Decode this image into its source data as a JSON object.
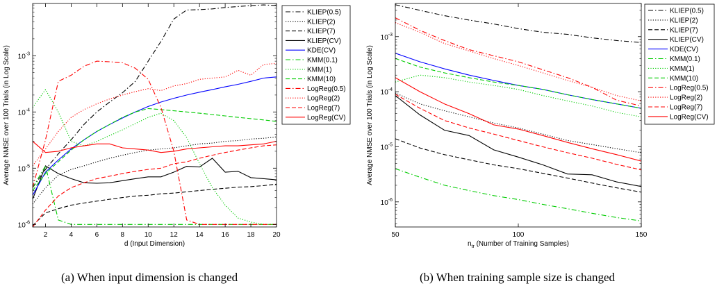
{
  "captions": {
    "a": "(a) When input dimension is changed",
    "b": "(b) When training sample size is changed"
  },
  "chart_data": [
    {
      "type": "line",
      "xlabel": "d (Input Dimension)",
      "ylabel": "Average NMSE over 100 Trials (in Log Scale)",
      "yscale": "log",
      "xlim": [
        1,
        20
      ],
      "ylim": [
        9e-07,
        0.0085
      ],
      "xticks": [
        2,
        4,
        6,
        8,
        10,
        12,
        14,
        16,
        18,
        20
      ],
      "yticks": [
        {
          "value": 1e-06,
          "base": "10",
          "exp": "-6"
        },
        {
          "value": 1e-05,
          "base": "10",
          "exp": "-5"
        },
        {
          "value": 0.0001,
          "base": "10",
          "exp": "-4"
        },
        {
          "value": 0.001,
          "base": "10",
          "exp": "-3"
        }
      ],
      "legend_position": "top-right",
      "series": [
        {
          "name": "KLIEP(0.5)",
          "color": "#000000",
          "dash": "dashdot",
          "x": [
            1,
            2,
            3,
            4,
            5,
            6,
            7,
            8,
            9,
            10,
            11,
            12,
            13,
            14,
            15,
            16,
            17,
            18,
            19,
            20
          ],
          "values": [
            4.5e-06,
            9.5e-06,
            1.8e-05,
            3.2e-05,
            6e-05,
            0.0001,
            0.00015,
            0.00022,
            0.00035,
            0.0008,
            0.0018,
            0.0045,
            0.0065,
            0.0066,
            0.0068,
            0.0072,
            0.0075,
            0.0078,
            0.008,
            0.0078
          ]
        },
        {
          "name": "KLIEP(2)",
          "color": "#000000",
          "dash": "dot",
          "x": [
            1,
            2,
            3,
            4,
            5,
            6,
            7,
            8,
            9,
            10,
            11,
            12,
            13,
            14,
            15,
            16,
            17,
            18,
            19,
            20
          ],
          "values": [
            2.3e-06,
            4.5e-06,
            7.5e-06,
            9.5e-06,
            1.1e-05,
            1.3e-05,
            1.5e-05,
            1.7e-05,
            1.9e-05,
            2.1e-05,
            2.2e-05,
            2.3e-05,
            2.5e-05,
            2.7e-05,
            2.8e-05,
            3e-05,
            3.1e-05,
            3.3e-05,
            3.4e-05,
            3.6e-05
          ]
        },
        {
          "name": "KLIEP(7)",
          "color": "#000000",
          "dash": "dash",
          "x": [
            1,
            2,
            3,
            4,
            5,
            6,
            7,
            8,
            9,
            10,
            11,
            12,
            13,
            14,
            15,
            16,
            17,
            18,
            19,
            20
          ],
          "values": [
            9.5e-07,
            1.6e-06,
            1.9e-06,
            2.2e-06,
            2.4e-06,
            2.6e-06,
            2.8e-06,
            3e-06,
            3.2e-06,
            3.3e-06,
            3.5e-06,
            3.6e-06,
            3.8e-06,
            4e-06,
            4.2e-06,
            4.4e-06,
            4.6e-06,
            4.7e-06,
            4.9e-06,
            5.2e-06
          ]
        },
        {
          "name": "KLIEP(CV)",
          "color": "#000000",
          "dash": "solid",
          "x": [
            1,
            2,
            3,
            4,
            5,
            6,
            7,
            8,
            9,
            10,
            11,
            12,
            13,
            14,
            15,
            16,
            17,
            18,
            19,
            20
          ],
          "values": [
            2.8e-06,
            1.1e-05,
            8e-06,
            6.5e-06,
            5.5e-06,
            5.4e-06,
            5.5e-06,
            6e-06,
            6.5e-06,
            7e-06,
            7e-06,
            8.5e-06,
            1.08e-05,
            1.05e-05,
            1.5e-05,
            8.5e-06,
            8.8e-06,
            6.8e-06,
            6.5e-06,
            6.2e-06
          ]
        },
        {
          "name": "KDE(CV)",
          "color": "#0000ff",
          "dash": "solid",
          "x": [
            1,
            2,
            3,
            4,
            5,
            6,
            7,
            8,
            9,
            10,
            11,
            12,
            13,
            14,
            15,
            16,
            17,
            18,
            19,
            20
          ],
          "values": [
            3.3e-06,
            8.5e-06,
            1.4e-05,
            2.2e-05,
            3.2e-05,
            4.5e-05,
            6e-05,
            7.8e-05,
            0.0001,
            0.000125,
            0.00015,
            0.000175,
            0.0002,
            0.000225,
            0.00025,
            0.00028,
            0.00031,
            0.00035,
            0.0004,
            0.00042
          ]
        },
        {
          "name": "KMM(0.1)",
          "color": "#00cc00",
          "dash": "dashdot",
          "x": [
            1,
            2,
            3,
            4,
            5,
            6,
            7,
            8,
            9,
            10,
            11,
            12,
            13,
            14,
            15,
            16,
            17,
            18,
            19,
            20
          ],
          "values": [
            4.5e-06,
            1.1e-05,
            1.2e-06,
            1e-06,
            1e-06,
            1e-06,
            1e-06,
            1e-06,
            1e-06,
            1e-06,
            1e-06,
            1e-06,
            1e-06,
            1e-06,
            1e-06,
            1e-06,
            1e-06,
            1e-06,
            1e-06,
            1e-06
          ]
        },
        {
          "name": "KMM(1)",
          "color": "#00cc00",
          "dash": "dot",
          "x": [
            1,
            2,
            3,
            4,
            5,
            6,
            7,
            8,
            9,
            10,
            11,
            12,
            13,
            14,
            15,
            16,
            17,
            18,
            19,
            20
          ],
          "values": [
            0.00012,
            0.00025,
            0.0001,
            3e-05,
            2.5e-05,
            3e-05,
            3.8e-05,
            4.8e-05,
            6.2e-05,
            8e-05,
            9.5e-05,
            7e-05,
            3.5e-05,
            1.2e-05,
            4.5e-06,
            2.2e-06,
            1.3e-06,
            1.1e-06,
            1e-06,
            1e-06
          ]
        },
        {
          "name": "KMM(10)",
          "color": "#00cc00",
          "dash": "dash",
          "x": [
            1,
            2,
            3,
            4,
            5,
            6,
            7,
            8,
            9,
            10,
            11,
            12,
            13,
            14,
            15,
            16,
            17,
            18,
            19,
            20
          ],
          "values": [
            4e-06,
            8e-06,
            1.3e-05,
            2.1e-05,
            3.2e-05,
            4.5e-05,
            6e-05,
            8e-05,
            0.0001,
            0.000115,
            0.00011,
            0.000105,
            0.0001,
            9.5e-05,
            9e-05,
            8.5e-05,
            8e-05,
            7.6e-05,
            7.2e-05,
            6.8e-05
          ]
        },
        {
          "name": "LogReg(0.5)",
          "color": "#ff0000",
          "dash": "dashdot",
          "x": [
            1,
            2,
            3,
            4,
            5,
            6,
            7,
            8,
            9,
            10,
            11,
            12,
            13,
            14,
            15,
            16,
            17,
            18,
            19,
            20
          ],
          "values": [
            4.5e-06,
            3.2e-05,
            0.00035,
            0.00045,
            0.00065,
            0.0008,
            0.00078,
            0.00075,
            0.0006,
            0.00038,
            0.00012,
            2e-05,
            1.2e-06,
            1e-06,
            1e-06,
            1e-06,
            1e-06,
            1e-06,
            1e-06,
            1e-06
          ]
        },
        {
          "name": "LogReg(2)",
          "color": "#ff0000",
          "dash": "dot",
          "x": [
            1,
            2,
            3,
            4,
            5,
            6,
            7,
            8,
            9,
            10,
            11,
            12,
            13,
            14,
            15,
            16,
            17,
            18,
            19,
            20
          ],
          "values": [
            1.1e-05,
            2.2e-05,
            4.5e-05,
            8e-05,
            0.00011,
            0.00014,
            0.00017,
            0.0002,
            0.00023,
            0.00026,
            0.00024,
            0.00029,
            0.00032,
            0.00038,
            0.0004,
            0.00042,
            0.00055,
            0.00045,
            0.0007,
            0.00073
          ]
        },
        {
          "name": "LogReg(7)",
          "color": "#ff0000",
          "dash": "dash",
          "x": [
            1,
            2,
            3,
            4,
            5,
            6,
            7,
            8,
            9,
            10,
            11,
            12,
            13,
            14,
            15,
            16,
            17,
            18,
            19,
            20
          ],
          "values": [
            9e-07,
            1.8e-06,
            3.2e-06,
            4.5e-06,
            5.5e-06,
            6.5e-06,
            7.2e-06,
            8e-06,
            8.8e-06,
            9.5e-06,
            1e-05,
            1.2e-05,
            1.3e-05,
            1.5e-05,
            1.7e-05,
            1.9e-05,
            2.1e-05,
            2.3e-05,
            2.5e-05,
            2.6e-05
          ]
        },
        {
          "name": "LogReg(CV)",
          "color": "#ff0000",
          "dash": "solid",
          "x": [
            1,
            2,
            3,
            4,
            5,
            6,
            7,
            8,
            9,
            10,
            11,
            12,
            13,
            14,
            15,
            16,
            17,
            18,
            19,
            20
          ],
          "values": [
            3e-05,
            1.9e-05,
            2e-05,
            2.3e-05,
            2.5e-05,
            2.7e-05,
            2.7e-05,
            2.3e-05,
            2.2e-05,
            2.1e-05,
            1.9e-05,
            2e-05,
            2.2e-05,
            2.3e-05,
            2.4e-05,
            2.5e-05,
            2.5e-05,
            2.6e-05,
            2.7e-05,
            3e-05
          ]
        }
      ]
    },
    {
      "type": "line",
      "xlabel_base": "n",
      "xlabel_sub": "tr",
      "xlabel_rest": " (Number of Training Samples)",
      "ylabel": "Average NMSE over 100 Trials (in Log Scale)",
      "yscale": "log",
      "xlim": [
        50,
        150
      ],
      "ylim": [
        3.5e-07,
        0.004
      ],
      "xticks": [
        50,
        100,
        150
      ],
      "yticks": [
        {
          "value": 1e-06,
          "base": "10",
          "exp": "-6"
        },
        {
          "value": 1e-05,
          "base": "10",
          "exp": "-5"
        },
        {
          "value": 0.0001,
          "base": "10",
          "exp": "-4"
        },
        {
          "value": 0.001,
          "base": "10",
          "exp": "-3"
        }
      ],
      "legend_position": "outside-right",
      "series": [
        {
          "name": "KLIEP(0.5)",
          "color": "#000000",
          "dash": "dashdot",
          "x": [
            50,
            60,
            70,
            80,
            90,
            100,
            110,
            120,
            130,
            140,
            150
          ],
          "values": [
            0.0038,
            0.003,
            0.0024,
            0.002,
            0.0017,
            0.0014,
            0.0012,
            0.0011,
            0.00095,
            0.00085,
            0.00078
          ]
        },
        {
          "name": "KLIEP(2)",
          "color": "#000000",
          "dash": "dot",
          "x": [
            50,
            60,
            70,
            80,
            90,
            100,
            110,
            120,
            130,
            140,
            150
          ],
          "values": [
            9.5e-05,
            6e-05,
            4.5e-05,
            3.5e-05,
            2.7e-05,
            2.2e-05,
            1.7e-05,
            1.3e-05,
            1.1e-05,
            9.2e-06,
            7.8e-06
          ]
        },
        {
          "name": "KLIEP(7)",
          "color": "#000000",
          "dash": "dash",
          "x": [
            50,
            60,
            70,
            80,
            90,
            100,
            110,
            120,
            130,
            140,
            150
          ],
          "values": [
            1.4e-05,
            9.5e-06,
            7.2e-06,
            5.8e-06,
            4.7e-06,
            4e-06,
            3.3e-06,
            2.7e-06,
            2.2e-06,
            1.8e-06,
            1.5e-06
          ]
        },
        {
          "name": "KLIEP(CV)",
          "color": "#000000",
          "dash": "solid",
          "x": [
            50,
            60,
            70,
            80,
            90,
            100,
            110,
            120,
            130,
            140,
            150
          ],
          "values": [
            8.5e-05,
            3.8e-05,
            2e-05,
            1.6e-05,
            8.8e-06,
            6.5e-06,
            4.7e-06,
            3.2e-06,
            3.1e-06,
            2.3e-06,
            1.9e-06
          ]
        },
        {
          "name": "KDE(CV)",
          "color": "#0000ff",
          "dash": "solid",
          "x": [
            50,
            60,
            70,
            80,
            90,
            100,
            110,
            120,
            130,
            140,
            150
          ],
          "values": [
            0.0005,
            0.00035,
            0.00026,
            0.0002,
            0.00016,
            0.00013,
            0.00011,
            8.8e-05,
            7.2e-05,
            6e-05,
            5e-05
          ]
        },
        {
          "name": "KMM(0.1)",
          "color": "#00cc00",
          "dash": "dashdot",
          "x": [
            50,
            60,
            70,
            80,
            90,
            100,
            110,
            120,
            130,
            140,
            150
          ],
          "values": [
            4e-06,
            2.8e-06,
            2e-06,
            1.6e-06,
            1.3e-06,
            1.1e-06,
            9e-07,
            7.5e-07,
            6.2e-07,
            5.2e-07,
            4.5e-07
          ]
        },
        {
          "name": "KMM(1)",
          "color": "#00cc00",
          "dash": "dot",
          "x": [
            50,
            60,
            70,
            80,
            90,
            100,
            110,
            120,
            130,
            140,
            150
          ],
          "values": [
            0.00015,
            0.0002,
            0.00018,
            0.00015,
            0.00013,
            0.00011,
            8.5e-05,
            6.8e-05,
            5.5e-05,
            4.2e-05,
            3.5e-05
          ]
        },
        {
          "name": "KMM(10)",
          "color": "#00cc00",
          "dash": "dash",
          "x": [
            50,
            60,
            70,
            80,
            90,
            100,
            110,
            120,
            130,
            140,
            150
          ],
          "values": [
            0.0004,
            0.00028,
            0.00022,
            0.00018,
            0.00015,
            0.00013,
            0.00011,
            8.8e-05,
            7.2e-05,
            6e-05,
            5e-05
          ]
        },
        {
          "name": "LogReg(0.5)",
          "color": "#ff0000",
          "dash": "dashdot",
          "x": [
            50,
            60,
            70,
            80,
            90,
            100,
            110,
            120,
            130,
            140,
            150
          ],
          "values": [
            0.0022,
            0.0013,
            0.00085,
            0.00058,
            0.00045,
            0.00035,
            0.00025,
            0.00018,
            0.00012,
            7e-05,
            5.5e-05
          ]
        },
        {
          "name": "LogReg(2)",
          "color": "#ff0000",
          "dash": "dot",
          "x": [
            50,
            60,
            70,
            80,
            90,
            100,
            110,
            120,
            130,
            140,
            150
          ],
          "values": [
            0.0018,
            0.0012,
            0.00075,
            0.00055,
            0.0004,
            0.0003,
            0.00022,
            0.00016,
            0.00012,
            8.5e-05,
            6.8e-05
          ]
        },
        {
          "name": "LogReg(7)",
          "color": "#ff0000",
          "dash": "dash",
          "x": [
            50,
            60,
            70,
            80,
            90,
            100,
            110,
            120,
            130,
            140,
            150
          ],
          "values": [
            9e-05,
            5e-05,
            3e-05,
            2.2e-05,
            1.7e-05,
            1.3e-05,
            1e-05,
            7.8e-06,
            6.2e-06,
            4.8e-06,
            3.8e-06
          ]
        },
        {
          "name": "LogReg(CV)",
          "color": "#ff0000",
          "dash": "solid",
          "x": [
            50,
            60,
            70,
            80,
            90,
            100,
            110,
            120,
            130,
            140,
            150
          ],
          "values": [
            0.00018,
            0.0001,
            6e-05,
            4e-05,
            2.5e-05,
            2.1e-05,
            1.6e-05,
            1.2e-05,
            9.2e-06,
            7.2e-06,
            5.5e-06
          ]
        }
      ]
    }
  ]
}
